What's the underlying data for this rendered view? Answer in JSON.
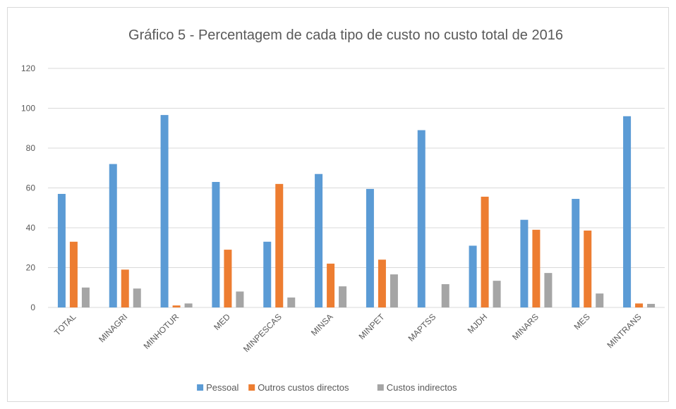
{
  "chart_data": {
    "type": "bar",
    "title": "Gráfico 5 - Percentagem de cada tipo de custo no custo total de 2016",
    "categories": [
      "TOTAL",
      "MINAGRI",
      "MINHOTUR",
      "MED",
      "MINPESCAS",
      "MINSA",
      "MINPET",
      "MAPTSS",
      "MJDH",
      "MINARS",
      "MES",
      "MINTRANS"
    ],
    "series": [
      {
        "name": "Pessoal",
        "color": "#5b9bd5",
        "values": [
          57,
          72,
          96.6,
          63,
          33,
          67,
          59.5,
          89,
          31,
          44,
          54.5,
          96
        ]
      },
      {
        "name": "Outros custos directos",
        "color": "#ed7d31",
        "values": [
          33,
          19,
          1,
          29,
          62,
          22,
          24,
          0,
          55.6,
          39,
          38.6,
          2
        ]
      },
      {
        "name": "Custos indirectos",
        "color": "#a5a5a5",
        "values": [
          10,
          9.5,
          2,
          8,
          5,
          10.6,
          16.6,
          11.7,
          13.4,
          17.3,
          7,
          1.8
        ]
      }
    ],
    "ylim": [
      0,
      120
    ],
    "yticks": [
      0,
      20,
      40,
      60,
      80,
      100,
      120
    ],
    "grid": true,
    "legend": "bottom"
  }
}
